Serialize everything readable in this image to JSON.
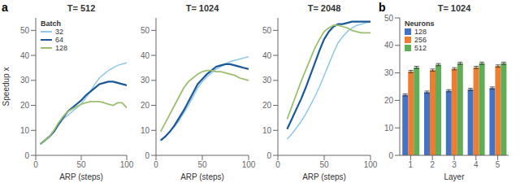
{
  "chart_data": [
    {
      "type": "line",
      "title": "T= 512",
      "annotations": [
        "a"
      ],
      "xlabel": "ARP (steps)",
      "ylabel": "Speedup x",
      "x": [
        5,
        10,
        15,
        20,
        25,
        30,
        35,
        40,
        45,
        50,
        55,
        60,
        65,
        70,
        75,
        80,
        85,
        90,
        95,
        100
      ],
      "series": [
        {
          "name": "32",
          "color": "#8EC8E8",
          "values": [
            4.5,
            6.0,
            7.5,
            9.5,
            12.0,
            14.5,
            16.0,
            17.5,
            19.0,
            20.5,
            23.0,
            25.5,
            28.5,
            31.0,
            32.5,
            34.0,
            35.0,
            36.0,
            36.5,
            37.0
          ]
        },
        {
          "name": "64",
          "color": "#1B5899",
          "values": [
            4.5,
            6.0,
            7.5,
            9.5,
            12.5,
            15.0,
            17.5,
            19.0,
            20.5,
            22.0,
            24.0,
            25.5,
            27.0,
            28.5,
            29.0,
            29.5,
            29.5,
            29.0,
            28.5,
            28.0
          ]
        },
        {
          "name": "128",
          "color": "#9BBF6E",
          "values": [
            4.5,
            6.0,
            7.5,
            10.0,
            13.0,
            15.5,
            17.5,
            18.5,
            19.5,
            20.5,
            21.0,
            21.5,
            21.5,
            21.5,
            21.0,
            20.5,
            20.0,
            21.0,
            21.0,
            19.0
          ]
        }
      ],
      "xlim": [
        0,
        100
      ],
      "ylim": [
        0,
        55
      ],
      "xticks": [
        0,
        50,
        100
      ],
      "yticks": [
        0,
        10,
        20,
        30,
        40,
        50
      ],
      "grid": false,
      "legend": "upper left",
      "legend_title": "Batch"
    },
    {
      "type": "line",
      "title": "T= 1024",
      "xlabel": "ARP (steps)",
      "x": [
        5,
        10,
        15,
        20,
        25,
        30,
        35,
        40,
        45,
        50,
        55,
        60,
        65,
        70,
        75,
        80,
        85,
        90,
        95,
        100
      ],
      "series": [
        {
          "color": "#8EC8E8",
          "values": [
            6.0,
            7.5,
            9.5,
            11.5,
            14.0,
            17.0,
            20.0,
            23.5,
            27.0,
            29.5,
            31.5,
            33.0,
            34.5,
            35.5,
            36.5,
            37.5,
            38.0,
            38.5,
            39.0,
            39.5
          ]
        },
        {
          "color": "#1B5899",
          "values": [
            6.0,
            7.5,
            9.5,
            12.0,
            15.0,
            18.0,
            21.5,
            25.0,
            28.5,
            30.5,
            32.5,
            34.0,
            35.5,
            36.0,
            36.5,
            36.5,
            36.0,
            35.5,
            35.0,
            34.5
          ]
        },
        {
          "color": "#9BBF6E",
          "values": [
            9.5,
            13.0,
            16.5,
            20.0,
            23.5,
            27.0,
            29.5,
            31.0,
            32.5,
            33.5,
            34.0,
            34.0,
            33.5,
            33.5,
            33.0,
            32.5,
            32.0,
            31.0,
            30.5,
            30.0
          ]
        }
      ],
      "xlim": [
        0,
        100
      ],
      "ylim": [
        0,
        55
      ],
      "xticks": [
        0,
        50,
        100
      ],
      "yticks": [
        0,
        10,
        20,
        30,
        40,
        50
      ],
      "grid": false
    },
    {
      "type": "line",
      "title": "T= 2048",
      "xlabel": "ARP (steps)",
      "x": [
        10,
        15,
        20,
        25,
        30,
        35,
        40,
        45,
        50,
        55,
        60,
        65,
        70,
        75,
        80,
        85,
        90,
        95,
        100
      ],
      "series": [
        {
          "color": "#8EC8E8",
          "values": [
            6.5,
            8.5,
            11.0,
            13.5,
            16.5,
            20.0,
            23.5,
            27.5,
            32.0,
            36.5,
            41.0,
            45.0,
            47.5,
            49.5,
            51.0,
            52.0,
            52.5,
            53.0,
            53.5
          ]
        },
        {
          "color": "#1B5899",
          "values": [
            10.5,
            14.5,
            18.5,
            22.5,
            27.0,
            32.0,
            37.0,
            42.0,
            46.5,
            49.5,
            51.5,
            52.5,
            52.5,
            53.0,
            53.5,
            53.5,
            53.5,
            53.5,
            53.5
          ]
        },
        {
          "color": "#9BBF6E",
          "values": [
            14.5,
            19.5,
            24.5,
            29.5,
            34.0,
            38.5,
            43.0,
            46.5,
            49.5,
            51.0,
            52.0,
            52.0,
            51.5,
            51.0,
            50.0,
            49.5,
            49.0,
            49.0,
            49.0
          ]
        }
      ],
      "xlim": [
        0,
        100
      ],
      "ylim": [
        0,
        55
      ],
      "xticks": [
        0,
        50,
        100
      ],
      "yticks": [
        0,
        10,
        20,
        30,
        40,
        50
      ],
      "grid": false
    },
    {
      "type": "bar",
      "title": "T= 1024",
      "annotations": [
        "b"
      ],
      "xlabel": "Layer",
      "categories": [
        "1",
        "2",
        "3",
        "4",
        "5"
      ],
      "series": [
        {
          "name": "128",
          "color": "#4472C4",
          "values": [
            22.0,
            23.0,
            23.5,
            24.0,
            24.5
          ],
          "errors": [
            0.4,
            0.4,
            0.4,
            0.4,
            0.4
          ]
        },
        {
          "name": "256",
          "color": "#ED7D31",
          "values": [
            30.5,
            31.0,
            31.5,
            32.0,
            32.5
          ],
          "errors": [
            0.4,
            0.4,
            0.4,
            0.4,
            0.4
          ]
        },
        {
          "name": "512",
          "color": "#5FAD56",
          "values": [
            32.0,
            33.0,
            33.5,
            33.5,
            33.5
          ],
          "errors": [
            0.4,
            0.4,
            0.4,
            0.4,
            0.4
          ]
        }
      ],
      "ylim": [
        0,
        50
      ],
      "yticks": [
        0,
        10,
        20,
        30,
        40,
        50
      ],
      "grid": false,
      "legend": "upper left",
      "legend_title": "Neurons"
    }
  ]
}
